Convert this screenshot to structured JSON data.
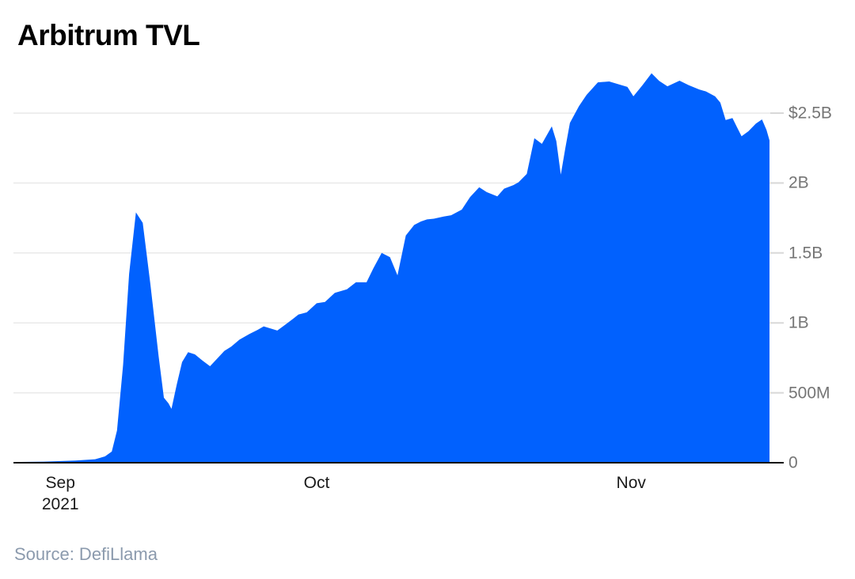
{
  "chart_data": {
    "type": "area",
    "title": "Arbitrum TVL",
    "source": "Source: DefiLlama",
    "unit": "USD",
    "value_unit": "millions_usd",
    "legend": "none",
    "grid": "horizontal",
    "y_axis_side": "right",
    "area_color": "#0161fe",
    "axis_color": "#111111",
    "grid_color": "#e9e9e9",
    "tick_stub_color": "#d8d8d8",
    "y_label_color": "#757575",
    "x_label_color": "#1a1a1a",
    "source_color": "#8b9aad",
    "ylim_millions": [
      0,
      2500
    ],
    "y_ticks": [
      {
        "label": "$2.5B",
        "value_millions": 2500
      },
      {
        "label": "2B",
        "value_millions": 2000
      },
      {
        "label": "1.5B",
        "value_millions": 1500
      },
      {
        "label": "1B",
        "value_millions": 1000
      },
      {
        "label": "500M",
        "value_millions": 500
      },
      {
        "label": "0",
        "value_millions": 0
      }
    ],
    "x_ticks": [
      {
        "label": "Sep",
        "sublabel": "2021",
        "x_pct": 6.2
      },
      {
        "label": "Oct",
        "sublabel": "",
        "x_pct": 40.1
      },
      {
        "label": "Nov",
        "sublabel": "",
        "x_pct": 81.7
      }
    ],
    "points_x_pct_value_millions": [
      [
        0,
        5
      ],
      [
        4,
        8
      ],
      [
        8.2,
        15
      ],
      [
        10.8,
        25
      ],
      [
        12.1,
        45
      ],
      [
        13,
        80
      ],
      [
        13.7,
        230
      ],
      [
        14.5,
        700
      ],
      [
        15.3,
        1350
      ],
      [
        16.2,
        1790
      ],
      [
        17.1,
        1715
      ],
      [
        18.1,
        1280
      ],
      [
        19.2,
        760
      ],
      [
        19.9,
        465
      ],
      [
        20.5,
        425
      ],
      [
        20.9,
        385
      ],
      [
        21.6,
        560
      ],
      [
        22.3,
        720
      ],
      [
        23.1,
        790
      ],
      [
        24,
        775
      ],
      [
        25,
        730
      ],
      [
        26,
        690
      ],
      [
        27,
        748
      ],
      [
        27.9,
        800
      ],
      [
        28.8,
        830
      ],
      [
        29.9,
        880
      ],
      [
        31.2,
        920
      ],
      [
        32.3,
        950
      ],
      [
        33.1,
        975
      ],
      [
        34,
        960
      ],
      [
        34.9,
        945
      ],
      [
        35.9,
        985
      ],
      [
        37,
        1030
      ],
      [
        37.7,
        1060
      ],
      [
        38.8,
        1075
      ],
      [
        40.1,
        1140
      ],
      [
        41.2,
        1150
      ],
      [
        42.5,
        1215
      ],
      [
        44.1,
        1240
      ],
      [
        45.3,
        1290
      ],
      [
        46.7,
        1290
      ],
      [
        47.6,
        1390
      ],
      [
        48.7,
        1500
      ],
      [
        49.8,
        1470
      ],
      [
        50.8,
        1340
      ],
      [
        51.9,
        1625
      ],
      [
        53,
        1700
      ],
      [
        53.9,
        1725
      ],
      [
        54.7,
        1740
      ],
      [
        55.6,
        1745
      ],
      [
        56.9,
        1760
      ],
      [
        57.9,
        1770
      ],
      [
        59.3,
        1810
      ],
      [
        60.4,
        1900
      ],
      [
        61.6,
        1970
      ],
      [
        62.6,
        1935
      ],
      [
        64,
        1905
      ],
      [
        64.9,
        1960
      ],
      [
        66.1,
        1985
      ],
      [
        66.8,
        2005
      ],
      [
        67.9,
        2065
      ],
      [
        68.9,
        2320
      ],
      [
        69.9,
        2280
      ],
      [
        71.2,
        2405
      ],
      [
        71.8,
        2300
      ],
      [
        72.4,
        2060
      ],
      [
        73,
        2250
      ],
      [
        73.6,
        2430
      ],
      [
        74.8,
        2550
      ],
      [
        75.8,
        2630
      ],
      [
        77.3,
        2720
      ],
      [
        78.8,
        2726
      ],
      [
        80.1,
        2705
      ],
      [
        81.2,
        2687
      ],
      [
        82,
        2620
      ],
      [
        83.2,
        2700
      ],
      [
        84.4,
        2785
      ],
      [
        85.4,
        2730
      ],
      [
        86.5,
        2692
      ],
      [
        88.1,
        2732
      ],
      [
        89.3,
        2700
      ],
      [
        90.7,
        2669
      ],
      [
        91.6,
        2655
      ],
      [
        92.8,
        2620
      ],
      [
        93.5,
        2575
      ],
      [
        94.2,
        2450
      ],
      [
        95.1,
        2465
      ],
      [
        95.7,
        2400
      ],
      [
        96.3,
        2335
      ],
      [
        97.2,
        2370
      ],
      [
        98.2,
        2425
      ],
      [
        99,
        2455
      ],
      [
        99.6,
        2380
      ],
      [
        100,
        2305
      ]
    ]
  }
}
